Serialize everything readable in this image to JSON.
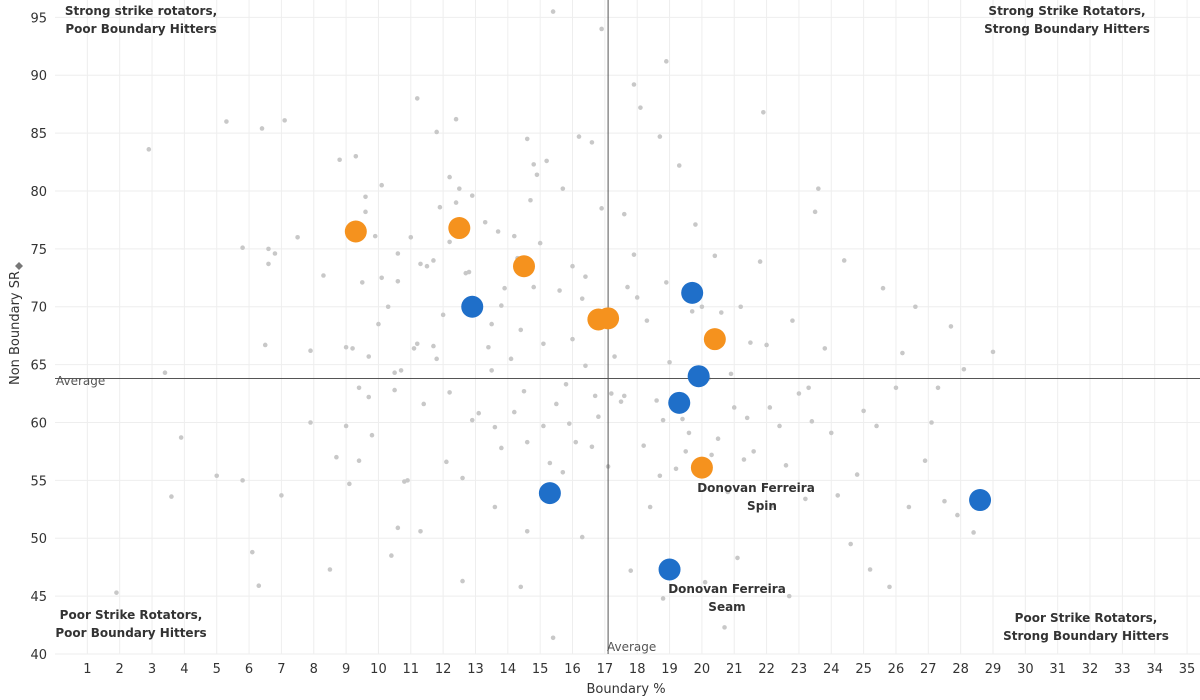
{
  "chart_data": {
    "type": "scatter",
    "title": "",
    "xlabel": "Boundary %",
    "ylabel": "Non Boundary SR",
    "ylabel_icon": "sort-icon",
    "xlim": [
      0,
      35.4
    ],
    "ylim": [
      40,
      96.5
    ],
    "x_ticks": [
      1,
      2,
      3,
      4,
      5,
      6,
      7,
      8,
      9,
      10,
      11,
      12,
      13,
      14,
      15,
      16,
      17,
      18,
      19,
      20,
      21,
      22,
      23,
      24,
      25,
      26,
      27,
      28,
      29,
      30,
      31,
      32,
      33,
      34,
      35
    ],
    "y_ticks": [
      40,
      45,
      50,
      55,
      60,
      65,
      70,
      75,
      80,
      85,
      90,
      95
    ],
    "grid": true,
    "reference_lines": {
      "x": {
        "value": 17.1,
        "label": "Average"
      },
      "y": {
        "value": 63.8,
        "label": "Average"
      }
    },
    "quadrant_labels": {
      "top_left": [
        "Strong strike rotators,",
        "Poor Boundary Hitters"
      ],
      "top_right": [
        "Strong Strike Rotators,",
        "Strong Boundary Hitters"
      ],
      "bottom_left": [
        "Poor Strike Rotators,",
        "Poor Boundary Hitters"
      ],
      "bottom_right": [
        "Poor Strike Rotators,",
        "Strong Boundary Hitters"
      ]
    },
    "colors": {
      "background": "#c8c8c8",
      "seam": "#1f6fc9",
      "spin": "#f5921e",
      "axis": "#555555",
      "grid": "#eeeeee"
    },
    "series": [
      {
        "name": "Spin",
        "color": "#f5921e",
        "points": [
          {
            "x": 9.3,
            "y": 76.5
          },
          {
            "x": 12.5,
            "y": 76.8
          },
          {
            "x": 14.5,
            "y": 73.5
          },
          {
            "x": 16.8,
            "y": 68.9
          },
          {
            "x": 17.1,
            "y": 69.0
          },
          {
            "x": 20.4,
            "y": 67.2
          },
          {
            "x": 20.0,
            "y": 56.1
          }
        ]
      },
      {
        "name": "Seam",
        "color": "#1f6fc9",
        "points": [
          {
            "x": 12.9,
            "y": 70.0
          },
          {
            "x": 19.7,
            "y": 71.2
          },
          {
            "x": 19.9,
            "y": 64.0
          },
          {
            "x": 19.3,
            "y": 61.7
          },
          {
            "x": 15.3,
            "y": 53.9
          },
          {
            "x": 19.0,
            "y": 47.3
          },
          {
            "x": 28.6,
            "y": 53.3
          }
        ]
      }
    ],
    "annotations": [
      {
        "lines": [
          "Donovan Ferreira",
          "Spin"
        ],
        "x": 20.0,
        "y": 56.1
      },
      {
        "lines": [
          "Donovan Ferreira",
          "Seam"
        ],
        "x": 19.0,
        "y": 47.3
      }
    ],
    "background_points": [
      [
        1.9,
        45.3
      ],
      [
        2.9,
        83.6
      ],
      [
        3.4,
        64.3
      ],
      [
        3.6,
        53.6
      ],
      [
        3.9,
        58.7
      ],
      [
        5.0,
        55.4
      ],
      [
        5.3,
        86.0
      ],
      [
        5.8,
        75.1
      ],
      [
        5.8,
        55.0
      ],
      [
        6.1,
        48.8
      ],
      [
        6.3,
        45.9
      ],
      [
        6.4,
        85.4
      ],
      [
        6.5,
        66.7
      ],
      [
        6.6,
        73.7
      ],
      [
        6.6,
        75.0
      ],
      [
        6.8,
        74.6
      ],
      [
        7.0,
        53.7
      ],
      [
        7.1,
        86.1
      ],
      [
        7.5,
        76.0
      ],
      [
        7.9,
        60.0
      ],
      [
        7.9,
        66.2
      ],
      [
        8.3,
        72.7
      ],
      [
        8.5,
        47.3
      ],
      [
        8.7,
        57.0
      ],
      [
        8.8,
        82.7
      ],
      [
        9.1,
        54.7
      ],
      [
        9.0,
        59.7
      ],
      [
        9.0,
        66.5
      ],
      [
        9.2,
        66.4
      ],
      [
        9.3,
        83.0
      ],
      [
        9.4,
        56.7
      ],
      [
        9.4,
        63.0
      ],
      [
        9.5,
        72.1
      ],
      [
        9.6,
        78.2
      ],
      [
        9.6,
        79.5
      ],
      [
        9.7,
        62.2
      ],
      [
        9.7,
        65.7
      ],
      [
        9.8,
        58.9
      ],
      [
        9.9,
        76.1
      ],
      [
        10.0,
        68.5
      ],
      [
        10.1,
        80.5
      ],
      [
        10.1,
        72.5
      ],
      [
        10.3,
        70.0
      ],
      [
        10.4,
        48.5
      ],
      [
        10.5,
        62.8
      ],
      [
        10.5,
        64.3
      ],
      [
        10.6,
        72.2
      ],
      [
        10.6,
        74.6
      ],
      [
        10.6,
        50.9
      ],
      [
        10.7,
        64.5
      ],
      [
        10.8,
        54.9
      ],
      [
        10.9,
        55.0
      ],
      [
        11.0,
        76.0
      ],
      [
        11.1,
        66.4
      ],
      [
        11.2,
        66.8
      ],
      [
        11.3,
        73.7
      ],
      [
        11.2,
        88.0
      ],
      [
        11.3,
        50.6
      ],
      [
        11.4,
        61.6
      ],
      [
        11.5,
        73.5
      ],
      [
        11.7,
        74.0
      ],
      [
        11.7,
        66.6
      ],
      [
        11.8,
        85.1
      ],
      [
        11.8,
        65.5
      ],
      [
        11.9,
        78.6
      ],
      [
        12.0,
        69.3
      ],
      [
        12.1,
        56.6
      ],
      [
        12.2,
        81.2
      ],
      [
        12.2,
        75.6
      ],
      [
        12.2,
        62.6
      ],
      [
        12.4,
        86.2
      ],
      [
        12.4,
        79.0
      ],
      [
        12.5,
        80.2
      ],
      [
        12.6,
        55.2
      ],
      [
        12.6,
        46.3
      ],
      [
        12.7,
        72.9
      ],
      [
        12.8,
        73.0
      ],
      [
        12.9,
        60.2
      ],
      [
        12.9,
        79.6
      ],
      [
        13.1,
        60.8
      ],
      [
        13.3,
        77.3
      ],
      [
        13.4,
        66.5
      ],
      [
        13.5,
        68.5
      ],
      [
        13.5,
        64.5
      ],
      [
        13.6,
        59.6
      ],
      [
        13.6,
        52.7
      ],
      [
        13.7,
        76.5
      ],
      [
        13.8,
        57.8
      ],
      [
        13.8,
        70.1
      ],
      [
        13.9,
        71.6
      ],
      [
        14.1,
        65.5
      ],
      [
        14.2,
        60.9
      ],
      [
        14.2,
        76.1
      ],
      [
        14.3,
        74.2
      ],
      [
        14.4,
        68.0
      ],
      [
        14.4,
        45.8
      ],
      [
        14.5,
        62.7
      ],
      [
        14.6,
        58.3
      ],
      [
        14.6,
        50.6
      ],
      [
        14.6,
        84.5
      ],
      [
        14.7,
        79.2
      ],
      [
        14.8,
        71.7
      ],
      [
        14.8,
        82.3
      ],
      [
        14.9,
        81.4
      ],
      [
        15.0,
        75.5
      ],
      [
        15.1,
        59.7
      ],
      [
        15.1,
        66.8
      ],
      [
        15.2,
        82.6
      ],
      [
        15.3,
        56.5
      ],
      [
        15.4,
        95.5
      ],
      [
        15.4,
        41.4
      ],
      [
        15.5,
        61.6
      ],
      [
        15.6,
        71.4
      ],
      [
        15.7,
        55.7
      ],
      [
        15.7,
        80.2
      ],
      [
        15.8,
        63.3
      ],
      [
        15.9,
        59.9
      ],
      [
        16.0,
        73.5
      ],
      [
        16.0,
        67.2
      ],
      [
        16.1,
        58.3
      ],
      [
        16.2,
        84.7
      ],
      [
        16.3,
        50.1
      ],
      [
        16.3,
        70.7
      ],
      [
        16.4,
        64.9
      ],
      [
        16.4,
        72.6
      ],
      [
        16.6,
        57.9
      ],
      [
        16.6,
        84.2
      ],
      [
        16.7,
        62.3
      ],
      [
        16.8,
        60.5
      ],
      [
        16.9,
        78.5
      ],
      [
        16.9,
        94.0
      ],
      [
        17.0,
        69.0
      ],
      [
        17.1,
        56.2
      ],
      [
        17.2,
        62.5
      ],
      [
        17.3,
        65.7
      ],
      [
        17.5,
        61.8
      ],
      [
        17.6,
        78.0
      ],
      [
        17.6,
        62.3
      ],
      [
        17.7,
        71.7
      ],
      [
        17.8,
        47.2
      ],
      [
        17.9,
        74.5
      ],
      [
        17.9,
        89.2
      ],
      [
        18.0,
        70.8
      ],
      [
        18.1,
        87.2
      ],
      [
        18.2,
        58.0
      ],
      [
        18.3,
        68.8
      ],
      [
        18.4,
        52.7
      ],
      [
        18.6,
        61.9
      ],
      [
        18.7,
        55.4
      ],
      [
        18.7,
        84.7
      ],
      [
        18.8,
        44.8
      ],
      [
        18.8,
        60.2
      ],
      [
        18.9,
        72.1
      ],
      [
        18.9,
        91.2
      ],
      [
        19.0,
        65.2
      ],
      [
        19.2,
        56.0
      ],
      [
        19.3,
        82.2
      ],
      [
        19.4,
        60.3
      ],
      [
        19.5,
        57.5
      ],
      [
        19.6,
        59.1
      ],
      [
        19.7,
        69.6
      ],
      [
        19.8,
        77.1
      ],
      [
        20.0,
        70.0
      ],
      [
        20.1,
        46.2
      ],
      [
        20.2,
        63.8
      ],
      [
        20.3,
        57.2
      ],
      [
        20.4,
        74.4
      ],
      [
        20.5,
        58.6
      ],
      [
        20.6,
        69.5
      ],
      [
        20.7,
        42.3
      ],
      [
        20.8,
        54.0
      ],
      [
        20.9,
        64.2
      ],
      [
        21.0,
        61.3
      ],
      [
        21.1,
        48.3
      ],
      [
        21.2,
        70.0
      ],
      [
        21.3,
        56.8
      ],
      [
        21.4,
        60.4
      ],
      [
        21.5,
        66.9
      ],
      [
        21.6,
        57.5
      ],
      [
        21.8,
        73.9
      ],
      [
        21.9,
        86.8
      ],
      [
        22.0,
        66.7
      ],
      [
        22.1,
        61.3
      ],
      [
        22.2,
        52.8
      ],
      [
        22.4,
        59.7
      ],
      [
        22.6,
        56.3
      ],
      [
        22.7,
        45.0
      ],
      [
        22.8,
        68.8
      ],
      [
        23.0,
        62.5
      ],
      [
        23.2,
        53.4
      ],
      [
        23.3,
        63.0
      ],
      [
        23.4,
        60.1
      ],
      [
        23.5,
        78.2
      ],
      [
        23.6,
        80.2
      ],
      [
        23.8,
        66.4
      ],
      [
        24.0,
        59.1
      ],
      [
        24.2,
        53.7
      ],
      [
        24.4,
        74.0
      ],
      [
        24.6,
        49.5
      ],
      [
        24.8,
        55.5
      ],
      [
        25.0,
        61.0
      ],
      [
        25.2,
        47.3
      ],
      [
        25.4,
        59.7
      ],
      [
        25.6,
        71.6
      ],
      [
        25.8,
        45.8
      ],
      [
        26.0,
        63.0
      ],
      [
        26.2,
        66.0
      ],
      [
        26.4,
        52.7
      ],
      [
        26.6,
        70.0
      ],
      [
        26.9,
        56.7
      ],
      [
        27.1,
        60.0
      ],
      [
        27.3,
        63.0
      ],
      [
        27.5,
        53.2
      ],
      [
        27.7,
        68.3
      ],
      [
        27.9,
        52.0
      ],
      [
        28.1,
        64.6
      ],
      [
        28.4,
        50.5
      ],
      [
        29.0,
        66.1
      ]
    ]
  }
}
